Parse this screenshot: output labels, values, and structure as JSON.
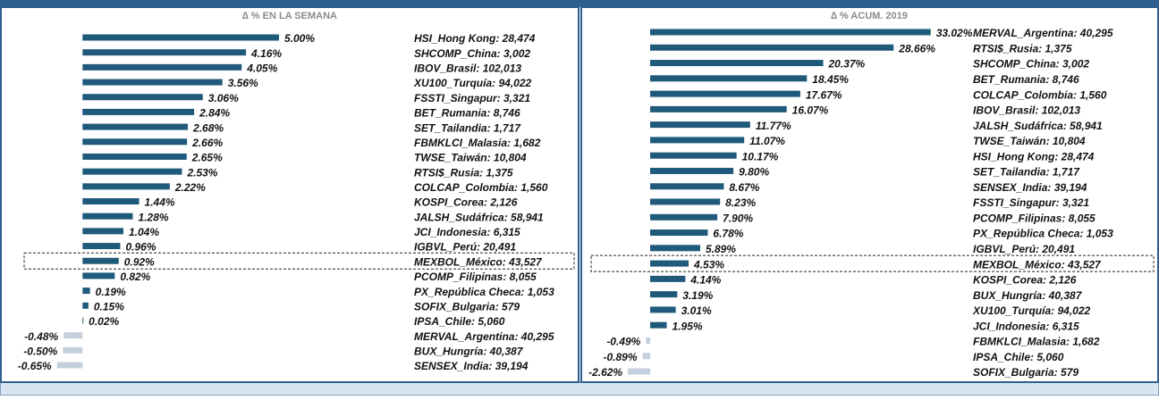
{
  "chart_data": [
    {
      "type": "bar",
      "orientation": "horizontal",
      "title": "∆ % EN LA SEMANA",
      "categories": [
        "HSI_Hong Kong: 28,474",
        "SHCOMP_China: 3,002",
        "IBOV_Brasil: 102,013",
        "XU100_Turquía: 94,022",
        "FSSTI_Singapur: 3,321",
        "BET_Rumania: 8,746",
        "SET_Tailandia: 1,717",
        "FBMKLCI_Malasia: 1,682",
        "TWSE_Taiwán: 10,804",
        "RTSI$_Rusia: 1,375",
        "COLCAP_Colombia: 1,560",
        "KOSPI_Corea: 2,126",
        "JALSH_Sudáfrica: 58,941",
        "JCI_Indonesia: 6,315",
        "IGBVL_Perú: 20,491",
        "MEXBOL_México: 43,527",
        "PCOMP_Filipinas: 8,055",
        "PX_República Checa: 1,053",
        "SOFIX_Bulgaria: 579",
        "IPSA_Chile: 5,060",
        "MERVAL_Argentina: 40,295",
        "BUX_Hungría: 40,387",
        "SENSEX_India: 39,194"
      ],
      "values": [
        5.0,
        4.16,
        4.05,
        3.56,
        3.06,
        2.84,
        2.68,
        2.66,
        2.65,
        2.53,
        2.22,
        1.44,
        1.28,
        1.04,
        0.96,
        0.92,
        0.82,
        0.19,
        0.15,
        0.02,
        -0.48,
        -0.5,
        -0.65
      ],
      "value_labels": [
        "5.00%",
        "4.16%",
        "4.05%",
        "3.56%",
        "3.06%",
        "2.84%",
        "2.68%",
        "2.66%",
        "2.65%",
        "2.53%",
        "2.22%",
        "1.44%",
        "1.28%",
        "1.04%",
        "0.96%",
        "0.92%",
        "0.82%",
        "0.19%",
        "0.15%",
        "0.02%",
        "-0.48%",
        "-0.50%",
        "-0.65%"
      ],
      "color": "#1f5a7b",
      "negative_color": "#c5d0de",
      "xlim": [
        -1.6,
        7.55
      ],
      "highlight": 15
    },
    {
      "type": "bar",
      "orientation": "horizontal",
      "title": "∆ % ACUM. 2019",
      "categories": [
        "MERVAL_Argentina: 40,295",
        "RTSI$_Rusia: 1,375",
        "SHCOMP_China: 3,002",
        "BET_Rumania: 8,746",
        "COLCAP_Colombia: 1,560",
        "IBOV_Brasil: 102,013",
        "JALSH_Sudáfrica: 58,941",
        "TWSE_Taiwán: 10,804",
        "HSI_Hong Kong: 28,474",
        "SET_Tailandia: 1,717",
        "SENSEX_India: 39,194",
        "FSSTI_Singapur: 3,321",
        "PCOMP_Filipinas: 8,055",
        "PX_República Checa: 1,053",
        "IGBVL_Perú: 20,491",
        "MEXBOL_México: 43,527",
        "KOSPI_Corea: 2,126",
        "BUX_Hungría: 40,387",
        "XU100_Turquía: 94,022",
        "JCI_Indonesia: 6,315",
        "FBMKLCI_Malasia: 1,682",
        "IPSA_Chile: 5,060",
        "SOFIX_Bulgaria: 579"
      ],
      "values": [
        33.02,
        28.66,
        20.37,
        18.45,
        17.67,
        16.07,
        11.77,
        11.07,
        10.17,
        9.8,
        8.67,
        8.23,
        7.9,
        6.78,
        5.89,
        4.53,
        4.14,
        3.19,
        3.01,
        1.95,
        -0.49,
        -0.89,
        -2.62
      ],
      "value_labels": [
        "33.02%",
        "28.66%",
        "20.37%",
        "18.45%",
        "17.67%",
        "16.07%",
        "11.77%",
        "11.07%",
        "10.17%",
        "9.80%",
        "8.67%",
        "8.23%",
        "7.90%",
        "6.78%",
        "5.89%",
        "4.53%",
        "4.14%",
        "3.19%",
        "3.01%",
        "1.95%",
        "-0.49%",
        "-0.89%",
        "-2.62%"
      ],
      "color": "#1f5a7b",
      "negative_color": "#c5d0de",
      "xlim": [
        -5,
        37
      ],
      "highlight": 15
    }
  ]
}
